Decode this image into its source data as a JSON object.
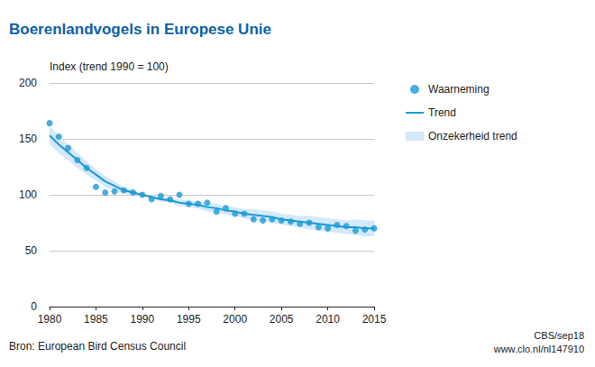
{
  "chart_data": {
    "type": "line",
    "title": "Boerenlandvogels in Europese Unie",
    "y_label": "Index (trend 1990 = 100)",
    "source": "Bron: European Bird Census Council",
    "credit": "CBS/sep18",
    "url": "www.clo.nl/nl147910",
    "x": [
      1980,
      1981,
      1982,
      1983,
      1984,
      1985,
      1986,
      1987,
      1988,
      1989,
      1990,
      1991,
      1992,
      1993,
      1994,
      1995,
      1996,
      1997,
      1998,
      1999,
      2000,
      2001,
      2002,
      2003,
      2004,
      2005,
      2006,
      2007,
      2008,
      2009,
      2010,
      2011,
      2012,
      2013,
      2014,
      2015
    ],
    "series": [
      {
        "name": "Waarneming",
        "type": "scatter",
        "marker": "circle",
        "color": "#1a9ad6",
        "values": [
          164,
          152,
          142,
          131,
          124,
          107,
          102,
          103,
          104,
          102,
          100,
          96,
          99,
          96,
          100,
          92,
          92,
          93,
          85,
          88,
          83,
          83,
          78,
          77,
          78,
          77,
          76,
          74,
          75,
          71,
          70,
          73,
          72,
          68,
          69,
          70
        ]
      },
      {
        "name": "Trend",
        "type": "line",
        "line_style": "solid",
        "color": "#1a9ad6",
        "values": [
          153,
          145,
          138,
          131,
          124,
          118,
          112,
          108,
          104,
          102,
          100,
          98,
          96,
          95,
          93,
          92,
          91,
          89,
          88,
          86,
          85,
          83,
          82,
          81,
          80,
          78,
          77,
          76,
          75,
          74,
          73,
          72,
          71,
          71,
          70,
          70
        ]
      }
    ],
    "band": {
      "name": "Onzekerheid trend",
      "color": "#d3e8f8",
      "lower": [
        145,
        137,
        131,
        124,
        118,
        113,
        107,
        104,
        101,
        100,
        100,
        97,
        94,
        93,
        90,
        89,
        88,
        85,
        84,
        82,
        81,
        79,
        77,
        76,
        75,
        73,
        72,
        71,
        69,
        68,
        67,
        66,
        65,
        64,
        63,
        63
      ],
      "upper": [
        161,
        153,
        145,
        138,
        130,
        123,
        117,
        112,
        107,
        104,
        100,
        99,
        98,
        97,
        96,
        95,
        94,
        93,
        92,
        90,
        89,
        87,
        87,
        86,
        85,
        83,
        82,
        81,
        81,
        80,
        79,
        78,
        77,
        78,
        77,
        77
      ]
    },
    "xlim": [
      1980,
      2015
    ],
    "xticks": [
      1980,
      1985,
      1990,
      1995,
      2000,
      2005,
      2010,
      2015
    ],
    "ylim": [
      0,
      200
    ],
    "yticks": [
      0,
      50,
      100,
      150,
      200
    ],
    "grid": true,
    "legend": "right"
  }
}
